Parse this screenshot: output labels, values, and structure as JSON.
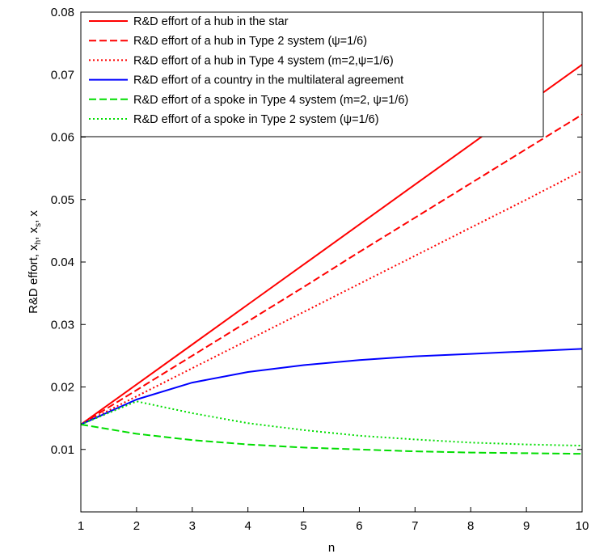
{
  "chart_data": {
    "type": "line",
    "xlabel": "n",
    "ylabel_parts": [
      "R&D effort, x",
      "h",
      ", x",
      "s",
      ", x"
    ],
    "xlim": [
      1,
      10
    ],
    "ylim": [
      0,
      0.08
    ],
    "xticks": [
      1,
      2,
      3,
      4,
      5,
      6,
      7,
      8,
      9,
      10
    ],
    "xtick_labels": [
      "1",
      "2",
      "3",
      "4",
      "5",
      "6",
      "7",
      "8",
      "9",
      "10"
    ],
    "yticks": [
      0.01,
      0.02,
      0.03,
      0.04,
      0.05,
      0.06,
      0.07,
      0.08
    ],
    "ytick_labels": [
      "0.01",
      "0.02",
      "0.03",
      "0.04",
      "0.05",
      "0.06",
      "0.07",
      "0.08"
    ],
    "grid": false,
    "legend_position": "top-left",
    "x": [
      1,
      2,
      3,
      4,
      5,
      6,
      7,
      8,
      9,
      10
    ],
    "series": [
      {
        "name": "R&D effort of a hub in the star",
        "color": "#ff0000",
        "dash": "solid",
        "values": [
          0.014,
          0.0204,
          0.0268,
          0.0332,
          0.0396,
          0.046,
          0.0524,
          0.0588,
          0.0652,
          0.0716
        ]
      },
      {
        "name": "R&D effort of a hub in Type 2 system (ψ=1/6)",
        "color": "#ff0000",
        "dash": "dashed",
        "values": [
          0.014,
          0.0195,
          0.025,
          0.0305,
          0.036,
          0.0416,
          0.0471,
          0.0526,
          0.0581,
          0.0636
        ]
      },
      {
        "name": "R&D effort of a hub in Type 4 system (m=2,ψ=1/6)",
        "color": "#ff0000",
        "dash": "dotted",
        "values": [
          0.014,
          0.0185,
          0.023,
          0.0275,
          0.032,
          0.0365,
          0.041,
          0.0455,
          0.05,
          0.0546
        ]
      },
      {
        "name": "R&D effort of a country in the multilateral agreement",
        "color": "#0000ff",
        "dash": "solid",
        "values": [
          0.014,
          0.018,
          0.0207,
          0.0224,
          0.0235,
          0.0243,
          0.0249,
          0.0253,
          0.0257,
          0.0261
        ]
      },
      {
        "name": "R&D effort of a spoke in Type 4 system (m=2, ψ=1/6)",
        "color": "#00dd00",
        "dash": "dashed",
        "values": [
          0.014,
          0.0125,
          0.0115,
          0.0108,
          0.0103,
          0.01,
          0.0097,
          0.0095,
          0.0094,
          0.0093
        ]
      },
      {
        "name": "R&D effort of a spoke in Type 2 system (ψ=1/6)",
        "color": "#00dd00",
        "dash": "dotted",
        "values": [
          0.014,
          0.0177,
          0.0158,
          0.0142,
          0.0131,
          0.0122,
          0.0116,
          0.0111,
          0.0108,
          0.0106
        ]
      }
    ]
  }
}
